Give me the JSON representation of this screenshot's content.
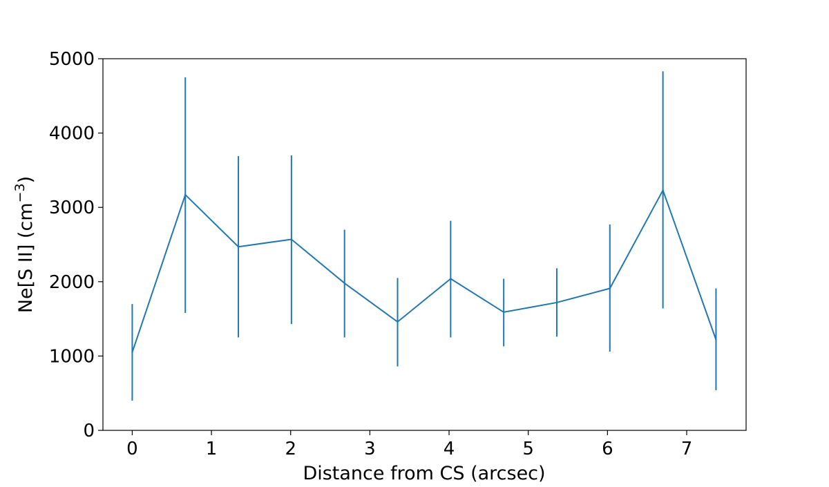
{
  "chart_data": {
    "type": "line",
    "title": "",
    "xlabel": "Distance from CS (arcsec)",
    "ylabel_main": "Ne[S II] (cm",
    "ylabel_sup": "−3",
    "ylabel_close": ")",
    "xlim": [
      -0.37,
      7.75
    ],
    "ylim": [
      0,
      5000
    ],
    "xticks": [
      0,
      1,
      2,
      3,
      4,
      5,
      6,
      7
    ],
    "yticks": [
      0,
      1000,
      2000,
      3000,
      4000,
      5000
    ],
    "xtick_labels": [
      "0",
      "1",
      "2",
      "3",
      "4",
      "5",
      "6",
      "7"
    ],
    "ytick_labels": [
      "0",
      "1000",
      "2000",
      "3000",
      "4000",
      "5000"
    ],
    "grid": false,
    "legend": "none",
    "series": [
      {
        "color": "#1f77b4",
        "points": [
          {
            "x": 0.0,
            "y": 1050,
            "err_low": 400,
            "err_high": 1700
          },
          {
            "x": 0.67,
            "y": 3170,
            "err_low": 1580,
            "err_high": 4750
          },
          {
            "x": 1.34,
            "y": 2470,
            "err_low": 1250,
            "err_high": 3690
          },
          {
            "x": 2.01,
            "y": 2570,
            "err_low": 1430,
            "err_high": 3700
          },
          {
            "x": 2.68,
            "y": 1980,
            "err_low": 1250,
            "err_high": 2700
          },
          {
            "x": 3.35,
            "y": 1460,
            "err_low": 860,
            "err_high": 2050
          },
          {
            "x": 4.02,
            "y": 2040,
            "err_low": 1250,
            "err_high": 2820
          },
          {
            "x": 4.69,
            "y": 1590,
            "err_low": 1130,
            "err_high": 2040
          },
          {
            "x": 5.36,
            "y": 1720,
            "err_low": 1260,
            "err_high": 2180
          },
          {
            "x": 6.03,
            "y": 1910,
            "err_low": 1060,
            "err_high": 2770
          },
          {
            "x": 6.7,
            "y": 3230,
            "err_low": 1640,
            "err_high": 4830
          },
          {
            "x": 7.37,
            "y": 1220,
            "err_low": 540,
            "err_high": 1910
          }
        ]
      }
    ]
  }
}
